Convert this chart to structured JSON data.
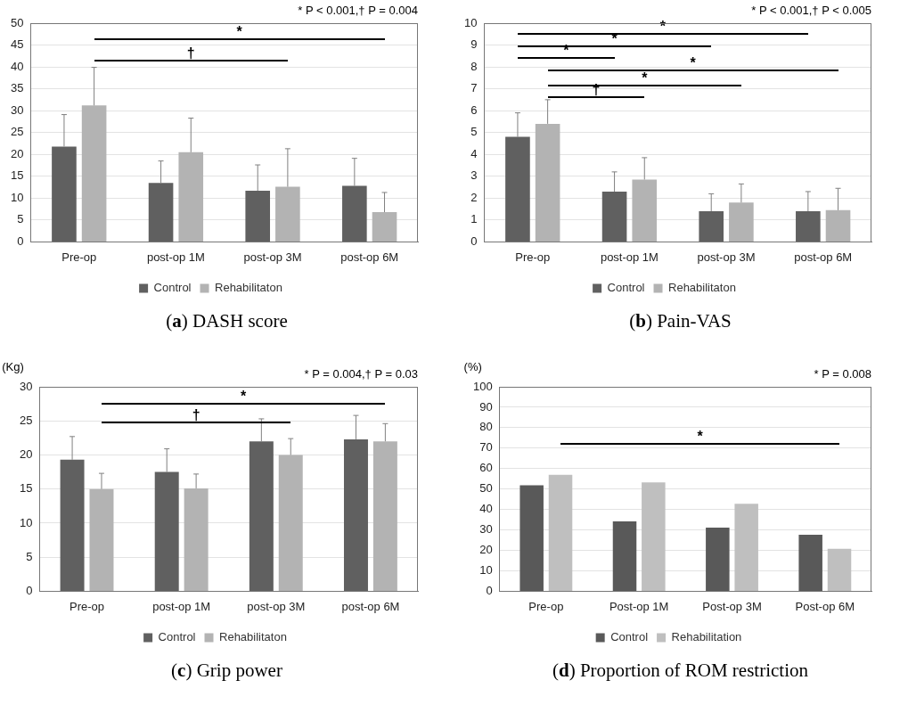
{
  "chart_data": [
    {
      "type": "bar",
      "title": "(a) DASH score",
      "categories": [
        "Pre-op",
        "post-op 1M",
        "post-op 3M",
        "post-op 6M"
      ],
      "series": [
        {
          "name": "Control",
          "color": "#606060",
          "values": [
            21.8,
            13.5,
            11.7,
            12.8
          ],
          "errors": [
            [
              21.8,
              29.1
            ],
            [
              13.5,
              18.5
            ],
            [
              11.7,
              17.6
            ],
            [
              12.8,
              19.1
            ]
          ]
        },
        {
          "name": "Rehabilitaton",
          "color": "#b3b3b3",
          "values": [
            31.2,
            20.5,
            12.6,
            6.8
          ],
          "errors": [
            [
              31.2,
              39.9
            ],
            [
              20.5,
              28.3
            ],
            [
              12.6,
              21.3
            ],
            [
              6.8,
              11.3
            ]
          ]
        }
      ],
      "ylim": [
        0,
        50
      ],
      "yticks": [
        0,
        5,
        10,
        15,
        20,
        25,
        30,
        35,
        40,
        45,
        50
      ],
      "grid": "y",
      "legend": "bottom",
      "annotations": [
        "* P < 0.001,† P = 0.004",
        "*",
        "†"
      ]
    },
    {
      "type": "bar",
      "title": "(b) Pain-VAS",
      "categories": [
        "Pre-op",
        "post-op 1M",
        "post-op 3M",
        "post-op 6M"
      ],
      "series": [
        {
          "name": "Control",
          "color": "#606060",
          "values": [
            4.8,
            2.3,
            1.4,
            1.4
          ],
          "errors": [
            [
              4.8,
              5.9
            ],
            [
              2.3,
              3.2
            ],
            [
              1.4,
              2.2
            ],
            [
              1.4,
              2.3
            ]
          ]
        },
        {
          "name": "Rehabilitaton",
          "color": "#b3b3b3",
          "values": [
            5.4,
            2.85,
            1.8,
            1.45
          ],
          "errors": [
            [
              5.4,
              6.5
            ],
            [
              2.85,
              3.85
            ],
            [
              1.8,
              2.65
            ],
            [
              1.45,
              2.45
            ]
          ]
        }
      ],
      "ylim": [
        0,
        10
      ],
      "yticks": [
        0,
        1,
        2,
        3,
        4,
        5,
        6,
        7,
        8,
        9,
        10
      ],
      "grid": "y",
      "legend": "bottom",
      "annotations": [
        "* P < 0.001,† P < 0.005",
        "*",
        "*",
        "*",
        "*",
        "*",
        "†"
      ]
    },
    {
      "type": "bar",
      "title": "(c) Grip power",
      "ylabel": "(Kg)",
      "categories": [
        "Pre-op",
        "post-op 1M",
        "post-op 3M",
        "post-op 6M"
      ],
      "series": [
        {
          "name": "Control",
          "color": "#606060",
          "values": [
            19.3,
            17.5,
            22.0,
            22.3
          ],
          "errors": [
            [
              19.3,
              22.7
            ],
            [
              17.5,
              20.9
            ],
            [
              22.0,
              25.3
            ],
            [
              22.3,
              25.8
            ]
          ]
        },
        {
          "name": "Rehabilitaton",
          "color": "#b3b3b3",
          "values": [
            15.0,
            15.1,
            20.0,
            22.0
          ],
          "errors": [
            [
              15.0,
              17.3
            ],
            [
              15.1,
              17.2
            ],
            [
              20.0,
              22.4
            ],
            [
              22.0,
              24.6
            ]
          ]
        }
      ],
      "ylim": [
        0,
        30
      ],
      "yticks": [
        0,
        5,
        10,
        15,
        20,
        25,
        30
      ],
      "grid": "y",
      "legend": "bottom",
      "annotations": [
        "* P = 0.004,† P = 0.03",
        "*",
        "†"
      ]
    },
    {
      "type": "bar",
      "title": "(d) Proportion of ROM restriction",
      "ylabel": "(%)",
      "categories": [
        "Pre-op",
        "Post-op 1M",
        "Post-op 3M",
        "Post-op 6M"
      ],
      "series": [
        {
          "name": "Control",
          "color": "#595959",
          "values": [
            51.8,
            34.2,
            31.1,
            27.6
          ]
        },
        {
          "name": "Rehabilitation",
          "color": "#bfbfbf",
          "values": [
            57.0,
            53.3,
            42.8,
            20.8
          ]
        }
      ],
      "ylim": [
        0,
        100
      ],
      "yticks": [
        0,
        10,
        20,
        30,
        40,
        50,
        60,
        70,
        80,
        90,
        100
      ],
      "grid": "y",
      "legend": "bottom",
      "annotations": [
        "* P = 0.008",
        "*"
      ]
    }
  ]
}
